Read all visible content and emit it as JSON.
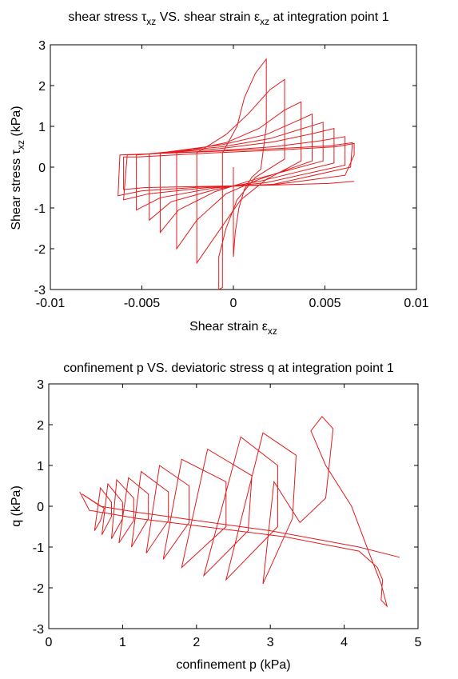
{
  "chart_data": [
    {
      "type": "line",
      "title": "shear stress τ_xz VS. shear strain ε_xz at integration point 1",
      "title_main": "shear stress τ",
      "title_s1": "xz",
      "title_mid": " VS. shear strain ε",
      "title_s2": "xz",
      "title_end": " at integration point 1",
      "xlabel": "Shear strain ε_xz",
      "xlabel_main": "Shear strain ε",
      "xlabel_sub": "xz",
      "ylabel": "Shear stress τ_xz (kPa)",
      "ylabel_main": "Shear stress τ",
      "ylabel_sub": "xz",
      "ylabel_unit": " (kPa)",
      "xlim": [
        -0.01,
        0.01
      ],
      "ylim": [
        -3,
        3
      ],
      "xticks": [
        "-0.01",
        "-0.005",
        "0",
        "0.005",
        "0.01"
      ],
      "yticks": [
        "3",
        "2",
        "1",
        "0",
        "-1",
        "-2",
        "-3"
      ],
      "grid": false,
      "series": [
        {
          "color": "#e41a1c",
          "x": [
            0,
            0,
            0.0001,
            0.0003,
            0.0006,
            0.001,
            0.0015,
            0.0018,
            0.0018,
            0.0012,
            0.0006,
            0.0002,
            -0.0006,
            -0.0006,
            -0.0008,
            -0.0008,
            -0.0004,
            0.0002,
            0.0012,
            0.0028,
            0.0028,
            0.002,
            0.0008,
            -0.0004,
            -0.002,
            -0.002,
            -0.001,
            0.0004,
            0.0018,
            0.0037,
            0.0037,
            0.0028,
            0.0014,
            -0.0004,
            -0.0031,
            -0.0031,
            -0.002,
            -0.0004,
            0.0014,
            0.0043,
            0.0043,
            0.0034,
            0.0018,
            -0.0006,
            -0.004,
            -0.004,
            -0.003,
            -0.001,
            0.001,
            0.0049,
            0.0049,
            0.0038,
            0.002,
            -0.0006,
            -0.0046,
            -0.0046,
            -0.0034,
            -0.001,
            0.0014,
            0.0055,
            0.0055,
            0.0043,
            0.0022,
            -0.0008,
            -0.0053,
            -0.0053,
            -0.004,
            -0.0012,
            0.0018,
            0.0061,
            0.0061,
            0.0048,
            0.0022,
            -0.001,
            -0.0058,
            -0.006,
            -0.0046,
            -0.0014,
            0.0022,
            0.0064,
            0.0065,
            0.0052,
            0.0022,
            -0.0014,
            -0.0062,
            -0.0063,
            -0.005,
            -0.0014,
            0.0024,
            0.0061,
            0.0066,
            0.0066,
            0.0056,
            0.0024,
            -0.0012,
            -0.0052,
            -0.006,
            -0.006,
            -0.0048,
            -0.0014,
            0.0022,
            0.0052,
            0.0066
          ],
          "y": [
            0,
            -2.2,
            -1.6,
            -1.0,
            -0.55,
            -0.25,
            -0.05,
            1.0,
            2.65,
            2.3,
            1.7,
            1.0,
            0.35,
            -2.95,
            -3.0,
            -2.2,
            -1.5,
            -0.8,
            -0.25,
            0.2,
            2.15,
            1.9,
            1.3,
            0.8,
            0.35,
            -2.35,
            -1.7,
            -0.8,
            -0.3,
            0.15,
            1.6,
            1.4,
            0.95,
            0.6,
            0.35,
            -2.0,
            -1.3,
            -0.65,
            -0.3,
            0.15,
            1.3,
            1.12,
            0.8,
            0.55,
            0.35,
            -1.6,
            -1.05,
            -0.6,
            -0.32,
            0.15,
            1.1,
            0.95,
            0.7,
            0.5,
            0.33,
            -1.3,
            -0.85,
            -0.55,
            -0.35,
            0.1,
            0.95,
            0.82,
            0.62,
            0.45,
            0.3,
            -1.05,
            -0.75,
            -0.52,
            -0.38,
            0.05,
            0.75,
            0.65,
            0.5,
            0.4,
            0.3,
            -0.8,
            -0.65,
            -0.5,
            -0.42,
            0,
            0.6,
            0.52,
            0.45,
            0.38,
            0.3,
            -0.7,
            -0.58,
            -0.48,
            -0.42,
            -0.2,
            0.3,
            0.58,
            0.5,
            0.42,
            0.35,
            0.25,
            0.25,
            -0.55,
            -0.5,
            -0.47,
            -0.44,
            -0.4,
            -0.35
          ]
        }
      ]
    },
    {
      "type": "line",
      "title": "confinement p VS. deviatoric stress q at integration point 1",
      "xlabel": "confinement p (kPa)",
      "ylabel": "q (kPa)",
      "xlim": [
        0,
        5
      ],
      "ylim": [
        -3,
        3
      ],
      "xticks": [
        "0",
        "1",
        "2",
        "3",
        "4",
        "5"
      ],
      "yticks": [
        "3",
        "2",
        "1",
        "0",
        "-1",
        "-2",
        "-3"
      ],
      "grid": false,
      "series": [
        {
          "color": "#e41a1c",
          "x": [
            4.75,
            4.2,
            3.6,
            3.0,
            2.4,
            1.8,
            1.2,
            0.7,
            0.45,
            0.75,
            0.7,
            0.62,
            0.7,
            0.85,
            0.85,
            0.72,
            0.8,
            1.0,
            1.0,
            0.85,
            0.92,
            1.15,
            1.15,
            0.95,
            1.08,
            1.35,
            1.35,
            1.12,
            1.25,
            1.62,
            1.62,
            1.32,
            1.5,
            1.9,
            1.9,
            1.55,
            1.8,
            2.4,
            2.4,
            1.8,
            2.15,
            2.75,
            2.7,
            2.1,
            2.6,
            3.1,
            3.1,
            2.4,
            2.9,
            3.35,
            3.3,
            2.9,
            3.05,
            3.4,
            3.75,
            3.85,
            3.7,
            3.55,
            3.75,
            4.1,
            4.35,
            4.5,
            4.58,
            4.5,
            4.52,
            4.45,
            4.2,
            3.2,
            2.1,
            1.2,
            0.55,
            0.42
          ],
          "y": [
            -1.25,
            -1.0,
            -0.8,
            -0.6,
            -0.45,
            -0.3,
            -0.15,
            0,
            0.3,
            -0.05,
            -0.35,
            -0.6,
            0.45,
            0.1,
            -0.25,
            -0.7,
            0.55,
            0.1,
            -0.3,
            -0.8,
            0.65,
            0.2,
            -0.35,
            -0.9,
            0.7,
            0.3,
            -0.3,
            -1.0,
            0.85,
            0.35,
            -0.35,
            -1.15,
            1.0,
            0.5,
            -0.4,
            -1.3,
            1.15,
            0.6,
            -0.5,
            -1.5,
            1.4,
            0.75,
            -0.6,
            -1.7,
            1.7,
            1.0,
            -0.5,
            -1.8,
            1.8,
            1.25,
            -0.3,
            -1.9,
            0.6,
            -0.4,
            0.2,
            1.9,
            2.2,
            1.85,
            1.0,
            0,
            -1.2,
            -1.9,
            -2.45,
            -2.3,
            -1.8,
            -1.5,
            -1.1,
            -0.75,
            -0.5,
            -0.3,
            -0.1,
            0.35
          ]
        }
      ]
    }
  ]
}
